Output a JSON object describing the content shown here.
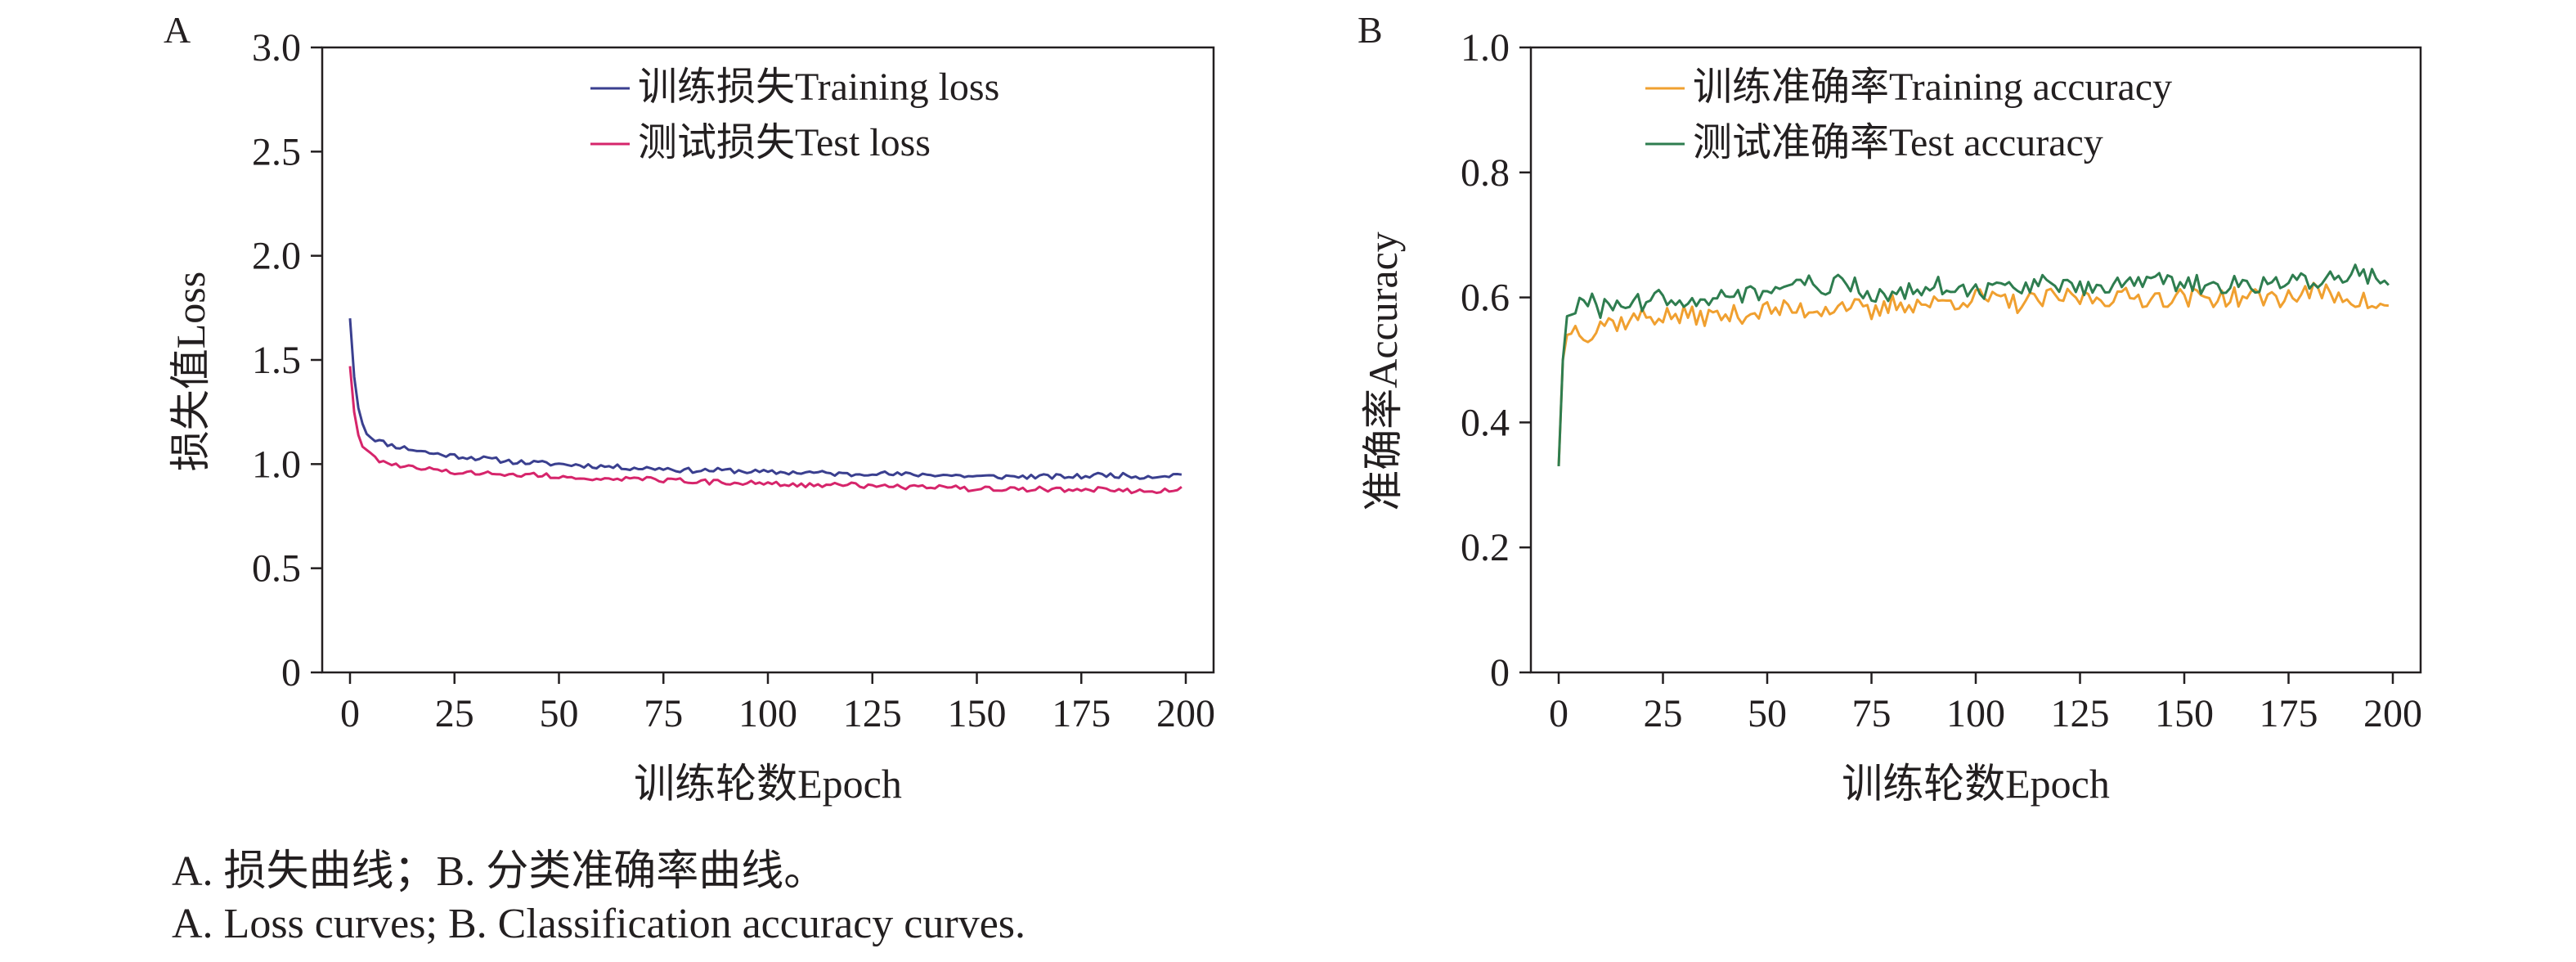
{
  "panel_labels": {
    "a": "A",
    "b": "B"
  },
  "captions": {
    "zh": "A. 损失曲线；B. 分类准确率曲线。",
    "en": "A. Loss curves; B. Classification accuracy curves."
  },
  "colors": {
    "axis": "#231f20",
    "train_loss": "#3a3f8f",
    "test_loss": "#d6256b",
    "train_acc": "#f0a030",
    "test_acc": "#2e7d4f"
  },
  "chart_data": [
    {
      "type": "line",
      "panel": "A",
      "xlabel": "训练轮数Epoch",
      "ylabel": "损失值Loss",
      "xlim": [
        0,
        200
      ],
      "ylim": [
        0,
        3.0
      ],
      "xticks": [
        0,
        25,
        50,
        75,
        100,
        125,
        150,
        175,
        200
      ],
      "xtick_labels": [
        "0",
        "25",
        "50",
        "75",
        "100",
        "125",
        "150",
        "175",
        "200"
      ],
      "yticks": [
        0,
        0.5,
        1.0,
        1.5,
        2.0,
        2.5,
        3.0
      ],
      "ytick_labels": [
        "0",
        "0.5",
        "1.0",
        "1.5",
        "2.0",
        "2.5",
        "3.0"
      ],
      "grid": false,
      "legend_position": "top-right",
      "series": [
        {
          "name": "训练损失Training loss",
          "color_key": "train_loss",
          "x": [
            0,
            1,
            2,
            3,
            4,
            5,
            7,
            10,
            15,
            20,
            25,
            30,
            40,
            50,
            60,
            70,
            75,
            80,
            90,
            100,
            110,
            120,
            125,
            130,
            140,
            150,
            160,
            170,
            175,
            180,
            190,
            199
          ],
          "y": [
            1.7,
            1.42,
            1.27,
            1.2,
            1.15,
            1.13,
            1.11,
            1.09,
            1.07,
            1.05,
            1.04,
            1.03,
            1.01,
            1.0,
            0.99,
            0.98,
            0.98,
            0.97,
            0.97,
            0.96,
            0.96,
            0.95,
            0.96,
            0.95,
            0.95,
            0.94,
            0.94,
            0.94,
            0.94,
            0.95,
            0.94,
            0.95
          ]
        },
        {
          "name": "测试损失Test loss",
          "color_key": "test_loss",
          "x": [
            0,
            1,
            2,
            3,
            4,
            5,
            7,
            10,
            15,
            20,
            25,
            30,
            40,
            50,
            60,
            70,
            75,
            80,
            90,
            100,
            110,
            120,
            125,
            130,
            140,
            150,
            160,
            170,
            175,
            180,
            190,
            199
          ],
          "y": [
            1.47,
            1.25,
            1.14,
            1.09,
            1.06,
            1.04,
            1.02,
            1.0,
            0.98,
            0.97,
            0.96,
            0.96,
            0.95,
            0.94,
            0.93,
            0.93,
            0.92,
            0.92,
            0.91,
            0.91,
            0.9,
            0.9,
            0.89,
            0.89,
            0.89,
            0.88,
            0.88,
            0.88,
            0.87,
            0.88,
            0.87,
            0.88
          ]
        }
      ]
    },
    {
      "type": "line",
      "panel": "B",
      "xlabel": "训练轮数Epoch",
      "ylabel": "准确率Accuracy",
      "xlim": [
        0,
        200
      ],
      "ylim": [
        0,
        1.0
      ],
      "xticks": [
        0,
        25,
        50,
        75,
        100,
        125,
        150,
        175,
        200
      ],
      "xtick_labels": [
        "0",
        "25",
        "50",
        "75",
        "100",
        "125",
        "150",
        "175",
        "200"
      ],
      "yticks": [
        0,
        0.2,
        0.4,
        0.6,
        0.8,
        1.0
      ],
      "ytick_labels": [
        "0",
        "0.2",
        "0.4",
        "0.6",
        "0.8",
        "1.0"
      ],
      "grid": false,
      "legend_position": "top-right",
      "series": [
        {
          "name": "训练准确率Training accuracy",
          "color_key": "train_acc",
          "x": [
            0,
            1,
            2,
            3,
            5,
            8,
            10,
            15,
            20,
            25,
            30,
            40,
            50,
            60,
            70,
            75,
            80,
            90,
            100,
            110,
            120,
            125,
            130,
            140,
            150,
            160,
            170,
            175,
            180,
            190,
            199
          ],
          "y": [
            0.33,
            0.5,
            0.54,
            0.55,
            0.55,
            0.54,
            0.56,
            0.56,
            0.57,
            0.57,
            0.57,
            0.57,
            0.58,
            0.58,
            0.59,
            0.57,
            0.59,
            0.59,
            0.6,
            0.59,
            0.6,
            0.6,
            0.6,
            0.6,
            0.6,
            0.6,
            0.6,
            0.6,
            0.61,
            0.6,
            0.58
          ]
        },
        {
          "name": "测试准确率Test accuracy",
          "color_key": "test_acc",
          "x": [
            0,
            1,
            2,
            3,
            5,
            8,
            10,
            15,
            20,
            25,
            30,
            40,
            50,
            60,
            70,
            75,
            80,
            90,
            100,
            110,
            120,
            125,
            130,
            140,
            150,
            160,
            170,
            175,
            180,
            190,
            199
          ],
          "y": [
            0.33,
            0.5,
            0.57,
            0.58,
            0.59,
            0.59,
            0.58,
            0.59,
            0.59,
            0.6,
            0.6,
            0.6,
            0.61,
            0.62,
            0.62,
            0.6,
            0.61,
            0.62,
            0.61,
            0.62,
            0.62,
            0.61,
            0.62,
            0.63,
            0.62,
            0.62,
            0.62,
            0.63,
            0.62,
            0.64,
            0.63
          ]
        }
      ]
    }
  ]
}
